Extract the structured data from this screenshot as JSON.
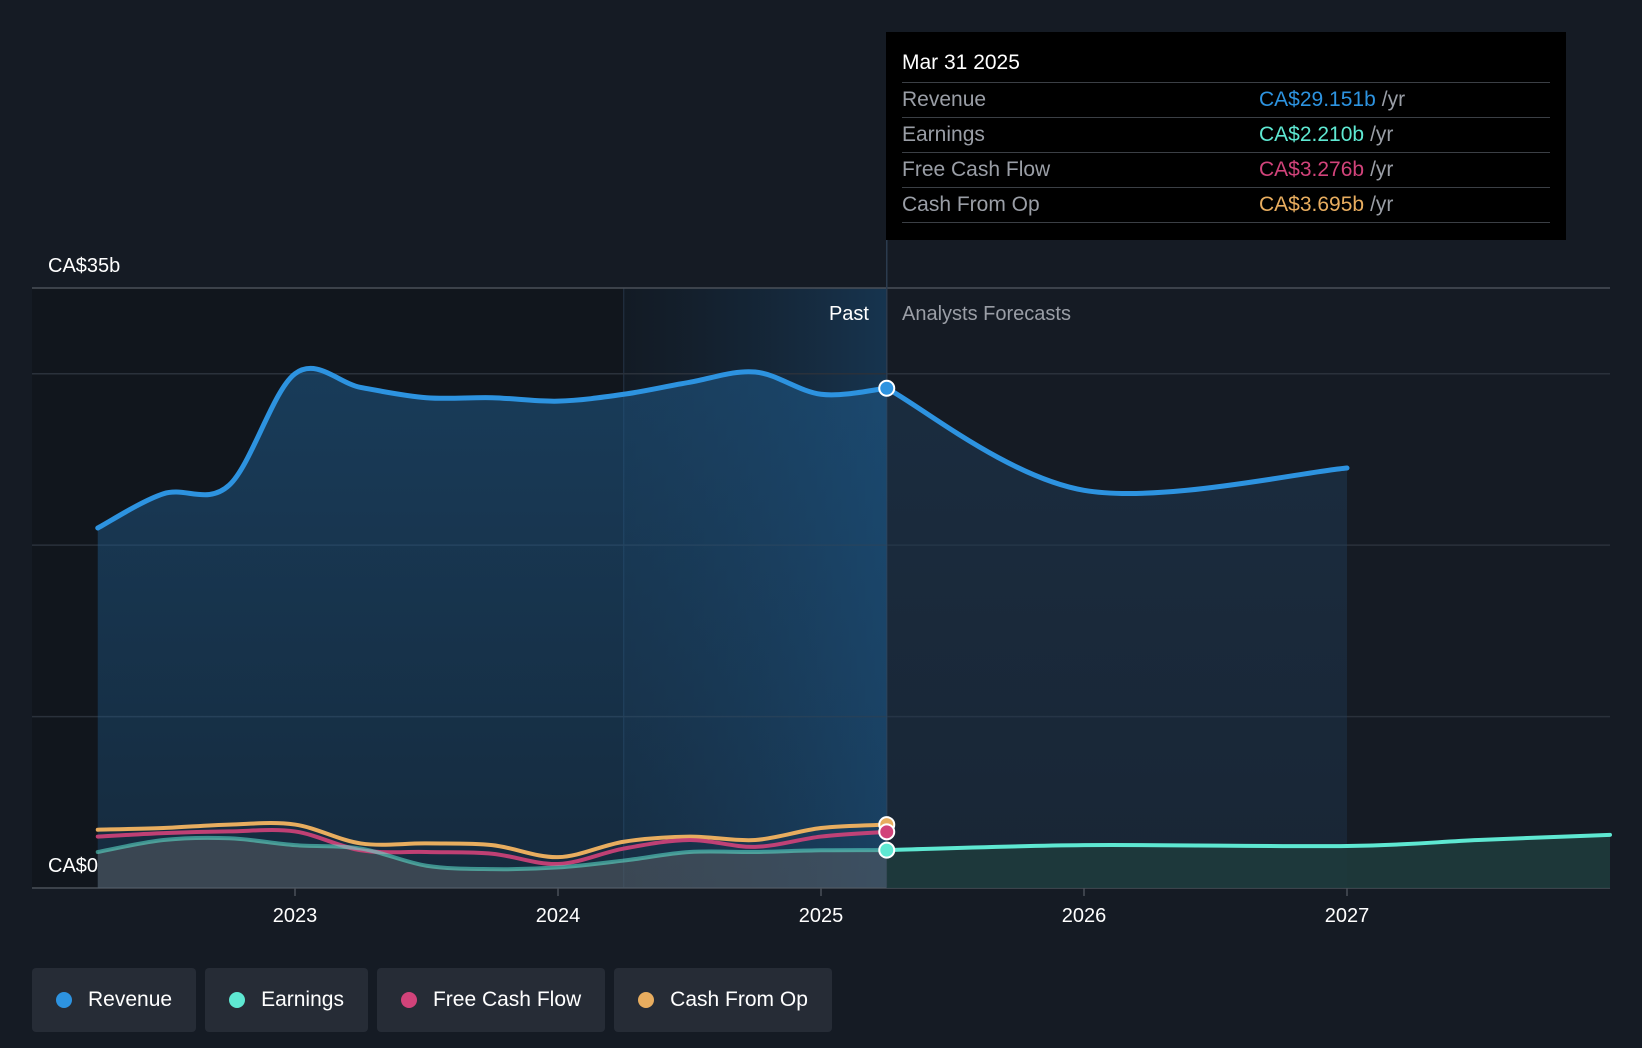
{
  "chart_data": {
    "type": "area",
    "currency_unit": "CA$ billions",
    "y_tick_labels": [
      "CA$35b",
      "CA$0"
    ],
    "ylim": [
      0,
      35
    ],
    "x_tick_labels": [
      "2023",
      "2024",
      "2025",
      "2026",
      "2027"
    ],
    "divider_date": 2025.25,
    "past_label": "Past",
    "forecast_label": "Analysts Forecasts",
    "grid": true,
    "series": [
      {
        "name": "Revenue",
        "color": "#2d93e0",
        "x": [
          2022.25,
          2022.5,
          2022.75,
          2023.0,
          2023.25,
          2023.5,
          2023.75,
          2024.0,
          2024.25,
          2024.5,
          2024.75,
          2025.0,
          2025.25
        ],
        "y": [
          21.0,
          23.0,
          23.5,
          30.0,
          29.2,
          28.6,
          28.6,
          28.4,
          28.8,
          29.5,
          30.1,
          28.8,
          29.151
        ]
      },
      {
        "name": "Revenue forecast",
        "color": "#2d93e0",
        "x": [
          2025.25,
          2026.0,
          2027.0
        ],
        "y": [
          29.151,
          23.2,
          24.5
        ]
      },
      {
        "name": "Earnings",
        "color": "#5ee8d2",
        "x": [
          2022.25,
          2022.5,
          2022.75,
          2023.0,
          2023.25,
          2023.5,
          2023.75,
          2024.0,
          2024.25,
          2024.5,
          2024.75,
          2025.0,
          2025.25
        ],
        "y": [
          2.1,
          2.8,
          2.9,
          2.5,
          2.3,
          1.3,
          1.1,
          1.2,
          1.6,
          2.1,
          2.1,
          2.2,
          2.21
        ]
      },
      {
        "name": "Earnings forecast",
        "color": "#5ee8d2",
        "x": [
          2025.25,
          2026.0,
          2027.0,
          2027.5,
          2028.0
        ],
        "y": [
          2.21,
          2.5,
          2.45,
          2.8,
          3.1
        ]
      },
      {
        "name": "Free Cash Flow",
        "color": "#d1437a",
        "x": [
          2022.25,
          2022.5,
          2022.75,
          2023.0,
          2023.25,
          2023.5,
          2023.75,
          2024.0,
          2024.25,
          2024.5,
          2024.75,
          2025.0,
          2025.25
        ],
        "y": [
          3.0,
          3.2,
          3.3,
          3.3,
          2.2,
          2.1,
          2.0,
          1.4,
          2.3,
          2.8,
          2.4,
          3.0,
          3.276
        ]
      },
      {
        "name": "Cash From Op",
        "color": "#e8ad5f",
        "x": [
          2022.25,
          2022.5,
          2022.75,
          2023.0,
          2023.25,
          2023.5,
          2023.75,
          2024.0,
          2024.25,
          2024.5,
          2024.75,
          2025.0,
          2025.25
        ],
        "y": [
          3.4,
          3.5,
          3.7,
          3.7,
          2.6,
          2.6,
          2.5,
          1.8,
          2.7,
          3.0,
          2.8,
          3.5,
          3.695
        ]
      }
    ]
  },
  "tooltip": {
    "date": "Mar 31 2025",
    "rows": [
      {
        "label": "Revenue",
        "value": "CA$29.151b",
        "unit": "/yr",
        "color": "#2d93e0"
      },
      {
        "label": "Earnings",
        "value": "CA$2.210b",
        "unit": "/yr",
        "color": "#5ee8d2"
      },
      {
        "label": "Free Cash Flow",
        "value": "CA$3.276b",
        "unit": "/yr",
        "color": "#d1437a"
      },
      {
        "label": "Cash From Op",
        "value": "CA$3.695b",
        "unit": "/yr",
        "color": "#e8ad5f"
      }
    ]
  },
  "legend": [
    {
      "label": "Revenue",
      "color": "#2d93e0"
    },
    {
      "label": "Earnings",
      "color": "#5ee8d2"
    },
    {
      "label": "Free Cash Flow",
      "color": "#d1437a"
    },
    {
      "label": "Cash From Op",
      "color": "#e8ad5f"
    }
  ]
}
